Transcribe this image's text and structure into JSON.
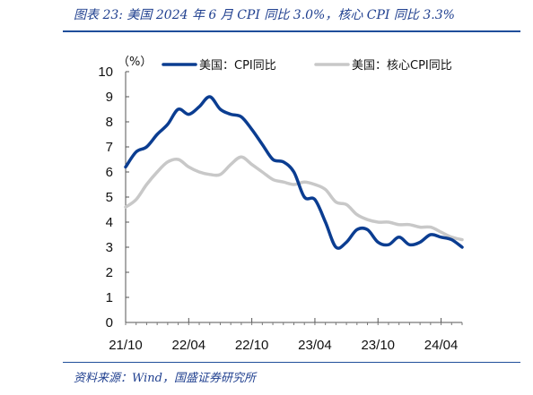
{
  "figure": {
    "title": "图表 23:  美国 2024 年 6 月 CPI 同比 3.0%，核心 CPI 同比 3.3%",
    "source": "资料来源：Wind，国盛证券研究所"
  },
  "colors": {
    "cpi": "#0b3d91",
    "core_cpi": "#c8c8c8",
    "rule": "#1f4e9a",
    "title": "#1f3f8f"
  },
  "chart_data": {
    "type": "line",
    "unit_label": "（%）",
    "ylim": [
      0,
      10
    ],
    "yticks": [
      0,
      1,
      2,
      3,
      4,
      5,
      6,
      7,
      8,
      9,
      10
    ],
    "x_start": "2021-10",
    "x_end": "2024-06",
    "xtick_labels": [
      "21/10",
      "22/04",
      "22/10",
      "23/04",
      "23/10",
      "24/04"
    ],
    "legend": "top",
    "grid": false,
    "series": [
      {
        "name": "美国：CPI同比",
        "key": "cpi",
        "x": [
          "2021-10",
          "2021-11",
          "2021-12",
          "2022-01",
          "2022-02",
          "2022-03",
          "2022-04",
          "2022-05",
          "2022-06",
          "2022-07",
          "2022-08",
          "2022-09",
          "2022-10",
          "2022-11",
          "2022-12",
          "2023-01",
          "2023-02",
          "2023-03",
          "2023-04",
          "2023-05",
          "2023-06",
          "2023-07",
          "2023-08",
          "2023-09",
          "2023-10",
          "2023-11",
          "2023-12",
          "2024-01",
          "2024-02",
          "2024-03",
          "2024-04",
          "2024-05",
          "2024-06"
        ],
        "values": [
          6.2,
          6.8,
          7.0,
          7.5,
          7.9,
          8.5,
          8.3,
          8.6,
          9.0,
          8.5,
          8.3,
          8.2,
          7.7,
          7.1,
          6.5,
          6.4,
          6.0,
          5.0,
          4.9,
          4.0,
          3.0,
          3.2,
          3.7,
          3.7,
          3.2,
          3.1,
          3.4,
          3.1,
          3.2,
          3.5,
          3.4,
          3.3,
          3.0
        ]
      },
      {
        "name": "美国：核心CPI同比",
        "key": "core_cpi",
        "x": [
          "2021-10",
          "2021-11",
          "2021-12",
          "2022-01",
          "2022-02",
          "2022-03",
          "2022-04",
          "2022-05",
          "2022-06",
          "2022-07",
          "2022-08",
          "2022-09",
          "2022-10",
          "2022-11",
          "2022-12",
          "2023-01",
          "2023-02",
          "2023-03",
          "2023-04",
          "2023-05",
          "2023-06",
          "2023-07",
          "2023-08",
          "2023-09",
          "2023-10",
          "2023-11",
          "2023-12",
          "2024-01",
          "2024-02",
          "2024-03",
          "2024-04",
          "2024-05",
          "2024-06"
        ],
        "values": [
          4.6,
          4.9,
          5.5,
          6.0,
          6.4,
          6.5,
          6.2,
          6.0,
          5.9,
          5.9,
          6.3,
          6.6,
          6.3,
          6.0,
          5.7,
          5.6,
          5.5,
          5.6,
          5.5,
          5.3,
          4.8,
          4.7,
          4.3,
          4.1,
          4.0,
          4.0,
          3.9,
          3.9,
          3.8,
          3.8,
          3.6,
          3.4,
          3.3
        ]
      }
    ]
  }
}
